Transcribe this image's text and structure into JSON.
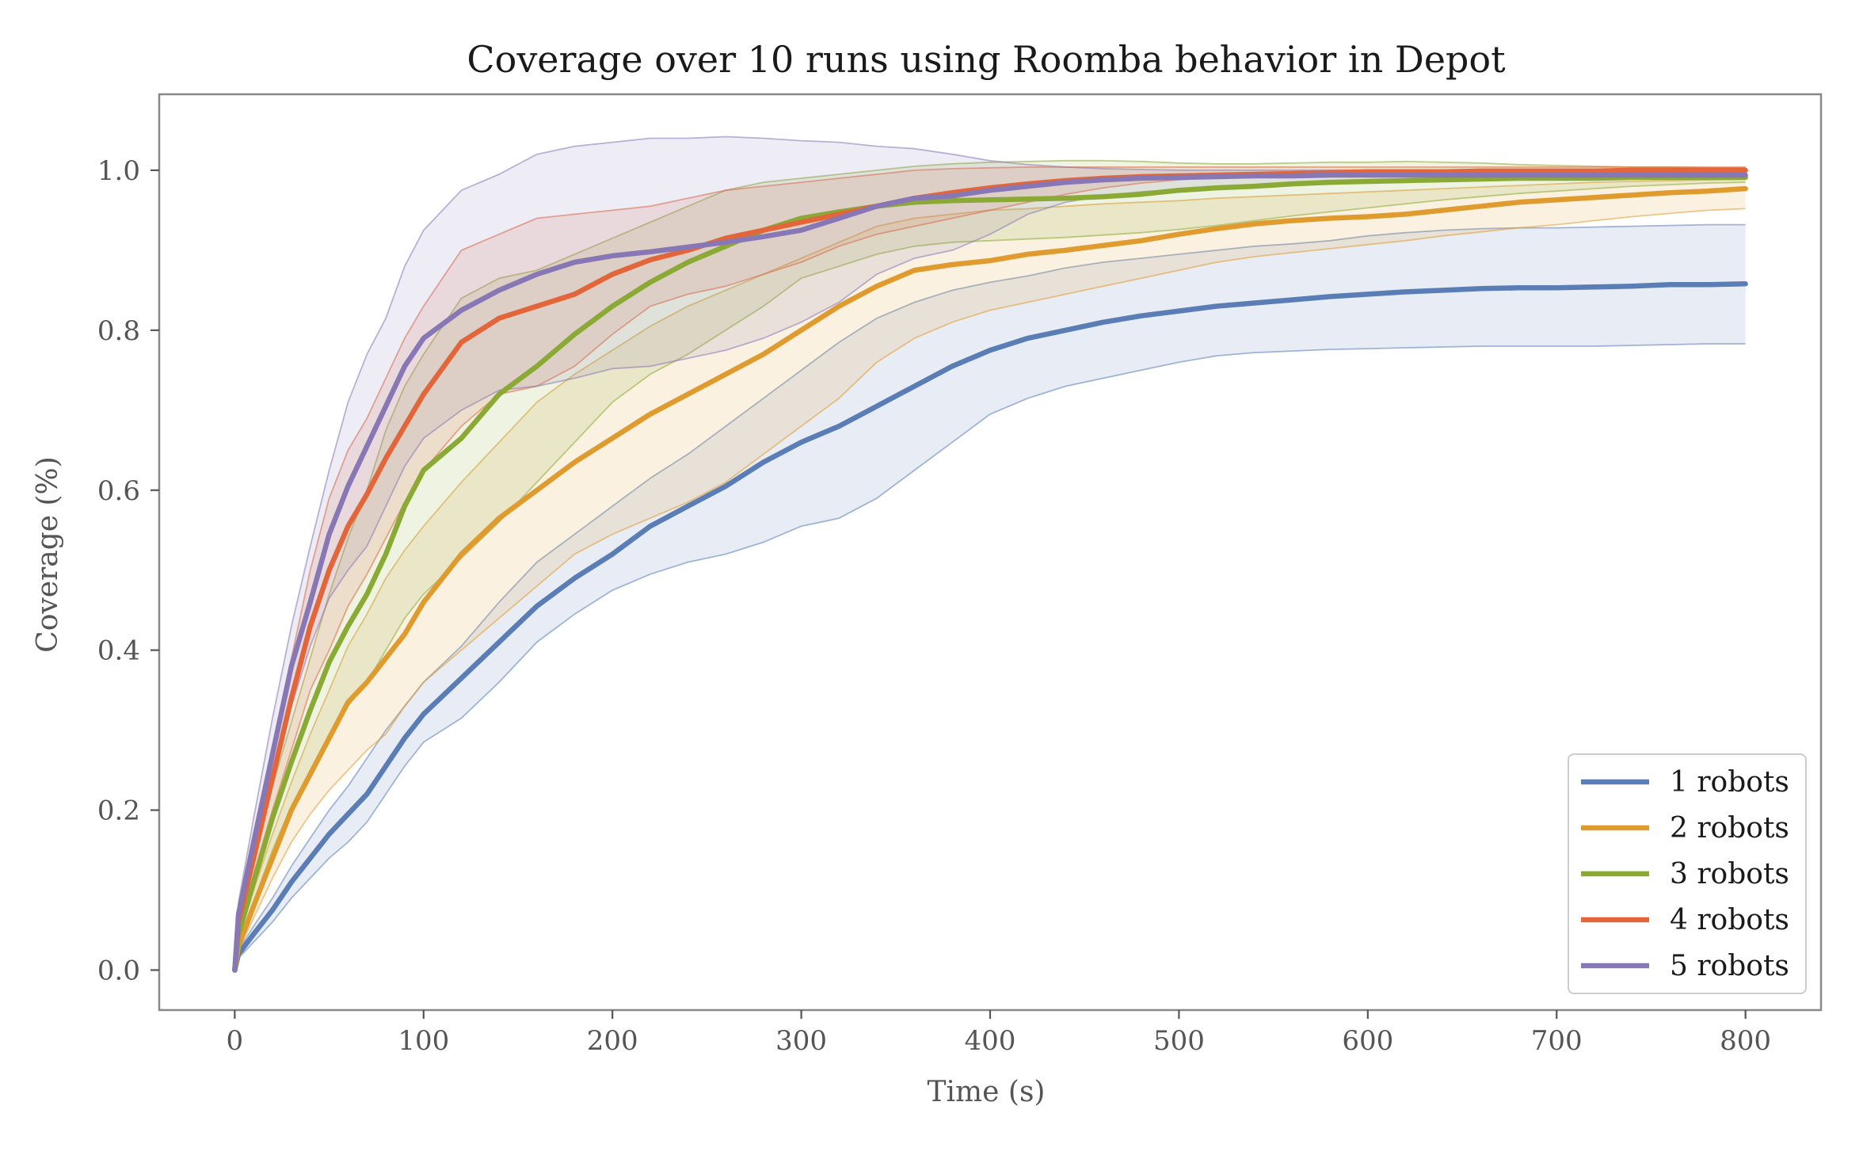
{
  "chart_data": {
    "type": "line",
    "title": "Coverage over 10 runs using Roomba behavior in Depot",
    "xlabel": "Time (s)",
    "ylabel": "Coverage (%)",
    "xlim": [
      -40,
      840
    ],
    "ylim": [
      -0.05,
      1.095
    ],
    "xticks": [
      0,
      100,
      200,
      300,
      400,
      500,
      600,
      700,
      800
    ],
    "xtick_labels": [
      "0",
      "100",
      "200",
      "300",
      "400",
      "500",
      "600",
      "700",
      "800"
    ],
    "yticks": [
      0.0,
      0.2,
      0.4,
      0.6,
      0.8,
      1.0
    ],
    "ytick_labels": [
      "0.0",
      "0.2",
      "0.4",
      "0.6",
      "0.8",
      "1.0"
    ],
    "grid": false,
    "legend_position": "lower-right",
    "x": [
      0,
      2,
      10,
      20,
      30,
      40,
      50,
      60,
      70,
      80,
      90,
      100,
      120,
      140,
      160,
      180,
      200,
      220,
      240,
      260,
      280,
      300,
      320,
      340,
      360,
      380,
      400,
      420,
      440,
      460,
      480,
      500,
      520,
      540,
      560,
      580,
      600,
      620,
      640,
      660,
      680,
      700,
      720,
      740,
      760,
      780,
      800
    ],
    "series": [
      {
        "name": "1 robots",
        "color": "#5a7db5",
        "mean": [
          0.0,
          0.02,
          0.045,
          0.075,
          0.11,
          0.14,
          0.17,
          0.195,
          0.22,
          0.255,
          0.29,
          0.32,
          0.365,
          0.41,
          0.455,
          0.49,
          0.52,
          0.555,
          0.58,
          0.605,
          0.635,
          0.66,
          0.68,
          0.705,
          0.73,
          0.755,
          0.775,
          0.79,
          0.8,
          0.81,
          0.818,
          0.824,
          0.83,
          0.834,
          0.838,
          0.842,
          0.845,
          0.848,
          0.85,
          0.852,
          0.853,
          0.853,
          0.854,
          0.855,
          0.857,
          0.857,
          0.858
        ],
        "lower": [
          0.0,
          0.015,
          0.035,
          0.06,
          0.09,
          0.115,
          0.14,
          0.16,
          0.185,
          0.22,
          0.255,
          0.285,
          0.315,
          0.36,
          0.41,
          0.445,
          0.475,
          0.495,
          0.51,
          0.52,
          0.535,
          0.555,
          0.565,
          0.59,
          0.625,
          0.66,
          0.695,
          0.715,
          0.73,
          0.74,
          0.75,
          0.76,
          0.768,
          0.772,
          0.774,
          0.776,
          0.777,
          0.778,
          0.779,
          0.78,
          0.78,
          0.78,
          0.78,
          0.781,
          0.782,
          0.783,
          0.783
        ],
        "upper": [
          0.0,
          0.025,
          0.055,
          0.09,
          0.13,
          0.165,
          0.2,
          0.23,
          0.265,
          0.3,
          0.33,
          0.36,
          0.405,
          0.46,
          0.51,
          0.545,
          0.58,
          0.615,
          0.645,
          0.68,
          0.715,
          0.75,
          0.785,
          0.815,
          0.835,
          0.85,
          0.86,
          0.868,
          0.878,
          0.885,
          0.89,
          0.895,
          0.9,
          0.905,
          0.908,
          0.912,
          0.918,
          0.922,
          0.925,
          0.927,
          0.928,
          0.928,
          0.929,
          0.93,
          0.931,
          0.932,
          0.932
        ]
      },
      {
        "name": "2 robots",
        "color": "#e09b2e",
        "mean": [
          0.0,
          0.03,
          0.08,
          0.14,
          0.2,
          0.245,
          0.29,
          0.335,
          0.36,
          0.39,
          0.42,
          0.46,
          0.52,
          0.565,
          0.6,
          0.635,
          0.665,
          0.695,
          0.72,
          0.745,
          0.77,
          0.8,
          0.83,
          0.855,
          0.875,
          0.882,
          0.887,
          0.895,
          0.9,
          0.906,
          0.912,
          0.92,
          0.927,
          0.933,
          0.937,
          0.94,
          0.942,
          0.945,
          0.95,
          0.955,
          0.96,
          0.963,
          0.966,
          0.969,
          0.972,
          0.974,
          0.977
        ],
        "lower": [
          0.0,
          0.025,
          0.065,
          0.115,
          0.16,
          0.195,
          0.225,
          0.25,
          0.275,
          0.295,
          0.33,
          0.36,
          0.4,
          0.44,
          0.48,
          0.52,
          0.545,
          0.565,
          0.585,
          0.61,
          0.645,
          0.68,
          0.715,
          0.76,
          0.79,
          0.81,
          0.825,
          0.835,
          0.845,
          0.855,
          0.865,
          0.875,
          0.885,
          0.892,
          0.897,
          0.902,
          0.907,
          0.912,
          0.918,
          0.923,
          0.928,
          0.932,
          0.937,
          0.942,
          0.946,
          0.95,
          0.952
        ],
        "upper": [
          0.0,
          0.04,
          0.1,
          0.17,
          0.235,
          0.295,
          0.35,
          0.405,
          0.445,
          0.49,
          0.525,
          0.555,
          0.61,
          0.66,
          0.71,
          0.745,
          0.775,
          0.805,
          0.83,
          0.85,
          0.87,
          0.89,
          0.91,
          0.93,
          0.94,
          0.945,
          0.95,
          0.952,
          0.955,
          0.958,
          0.96,
          0.962,
          0.965,
          0.967,
          0.969,
          0.971,
          0.973,
          0.975,
          0.977,
          0.979,
          0.981,
          0.983,
          0.985,
          0.986,
          0.987,
          0.988,
          0.989
        ]
      },
      {
        "name": "3 robots",
        "color": "#8aaa35",
        "mean": [
          0.0,
          0.045,
          0.11,
          0.19,
          0.26,
          0.325,
          0.385,
          0.43,
          0.47,
          0.52,
          0.58,
          0.625,
          0.665,
          0.72,
          0.755,
          0.795,
          0.83,
          0.86,
          0.885,
          0.905,
          0.925,
          0.94,
          0.948,
          0.955,
          0.96,
          0.962,
          0.963,
          0.964,
          0.965,
          0.967,
          0.97,
          0.975,
          0.978,
          0.98,
          0.983,
          0.985,
          0.986,
          0.987,
          0.988,
          0.989,
          0.99,
          0.99,
          0.99,
          0.991,
          0.991,
          0.991,
          0.991
        ],
        "lower": [
          0.0,
          0.035,
          0.085,
          0.15,
          0.205,
          0.25,
          0.295,
          0.33,
          0.36,
          0.4,
          0.44,
          0.47,
          0.515,
          0.56,
          0.61,
          0.66,
          0.71,
          0.745,
          0.77,
          0.8,
          0.83,
          0.865,
          0.88,
          0.895,
          0.905,
          0.91,
          0.912,
          0.914,
          0.916,
          0.919,
          0.922,
          0.926,
          0.931,
          0.937,
          0.943,
          0.948,
          0.953,
          0.958,
          0.963,
          0.967,
          0.971,
          0.974,
          0.977,
          0.98,
          0.982,
          0.984,
          0.985
        ],
        "upper": [
          0.0,
          0.055,
          0.135,
          0.23,
          0.31,
          0.39,
          0.47,
          0.54,
          0.6,
          0.675,
          0.73,
          0.77,
          0.84,
          0.865,
          0.875,
          0.895,
          0.915,
          0.935,
          0.955,
          0.975,
          0.985,
          0.99,
          0.995,
          1.0,
          1.005,
          1.008,
          1.01,
          1.011,
          1.012,
          1.012,
          1.011,
          1.009,
          1.008,
          1.008,
          1.009,
          1.01,
          1.01,
          1.011,
          1.01,
          1.009,
          1.007,
          1.006,
          1.005,
          1.004,
          1.004,
          1.003,
          1.003
        ]
      },
      {
        "name": "4 robots",
        "color": "#e2663a",
        "mean": [
          0.0,
          0.06,
          0.14,
          0.24,
          0.34,
          0.43,
          0.5,
          0.555,
          0.595,
          0.64,
          0.68,
          0.72,
          0.785,
          0.815,
          0.83,
          0.845,
          0.87,
          0.888,
          0.9,
          0.915,
          0.925,
          0.935,
          0.945,
          0.955,
          0.965,
          0.972,
          0.978,
          0.983,
          0.987,
          0.99,
          0.992,
          0.993,
          0.994,
          0.995,
          0.996,
          0.997,
          0.998,
          0.998,
          0.998,
          0.999,
          0.999,
          0.999,
          0.999,
          1.0,
          1.0,
          1.0,
          1.0
        ],
        "lower": [
          0.0,
          0.05,
          0.12,
          0.2,
          0.275,
          0.35,
          0.4,
          0.455,
          0.495,
          0.54,
          0.585,
          0.625,
          0.68,
          0.72,
          0.73,
          0.755,
          0.795,
          0.83,
          0.845,
          0.855,
          0.87,
          0.885,
          0.905,
          0.92,
          0.93,
          0.94,
          0.95,
          0.96,
          0.97,
          0.978,
          0.984,
          0.988,
          0.991,
          0.993,
          0.995,
          0.996,
          0.997,
          0.997,
          0.998,
          0.998,
          0.998,
          0.999,
          0.999,
          0.999,
          0.999,
          0.999,
          0.999
        ],
        "upper": [
          0.0,
          0.07,
          0.16,
          0.275,
          0.39,
          0.5,
          0.59,
          0.65,
          0.69,
          0.74,
          0.79,
          0.83,
          0.9,
          0.92,
          0.94,
          0.945,
          0.95,
          0.955,
          0.965,
          0.975,
          0.98,
          0.985,
          0.99,
          0.995,
          1.0,
          1.002,
          1.003,
          1.004,
          1.004,
          1.004,
          1.004,
          1.004,
          1.004,
          1.004,
          1.004,
          1.004,
          1.004,
          1.004,
          1.004,
          1.004,
          1.004,
          1.004,
          1.004,
          1.004,
          1.004,
          1.004,
          1.004
        ]
      },
      {
        "name": "5 robots",
        "color": "#8777b4",
        "mean": [
          0.0,
          0.07,
          0.16,
          0.27,
          0.38,
          0.46,
          0.545,
          0.605,
          0.655,
          0.705,
          0.755,
          0.79,
          0.825,
          0.85,
          0.87,
          0.885,
          0.893,
          0.898,
          0.904,
          0.91,
          0.917,
          0.925,
          0.94,
          0.955,
          0.965,
          0.968,
          0.975,
          0.98,
          0.985,
          0.988,
          0.99,
          0.991,
          0.992,
          0.993,
          0.993,
          0.994,
          0.994,
          0.994,
          0.994,
          0.994,
          0.994,
          0.994,
          0.994,
          0.994,
          0.994,
          0.994,
          0.994
        ],
        "lower": [
          0.0,
          0.06,
          0.14,
          0.24,
          0.33,
          0.405,
          0.465,
          0.5,
          0.53,
          0.58,
          0.63,
          0.665,
          0.7,
          0.725,
          0.73,
          0.74,
          0.752,
          0.755,
          0.765,
          0.775,
          0.79,
          0.81,
          0.835,
          0.87,
          0.89,
          0.9,
          0.92,
          0.945,
          0.96,
          0.968,
          0.973,
          0.976,
          0.979,
          0.981,
          0.983,
          0.985,
          0.986,
          0.987,
          0.988,
          0.989,
          0.99,
          0.99,
          0.99,
          0.99,
          0.99,
          0.99,
          0.99
        ],
        "upper": [
          0.0,
          0.085,
          0.19,
          0.315,
          0.43,
          0.53,
          0.625,
          0.71,
          0.77,
          0.815,
          0.88,
          0.925,
          0.975,
          0.995,
          1.02,
          1.03,
          1.035,
          1.04,
          1.04,
          1.042,
          1.04,
          1.037,
          1.035,
          1.03,
          1.027,
          1.02,
          1.012,
          1.007,
          1.004,
          1.002,
          1.001,
          1.0,
          1.0,
          1.0,
          1.0,
          1.0,
          1.0,
          1.0,
          1.0,
          1.0,
          1.0,
          1.0,
          1.0,
          1.0,
          1.0,
          1.0,
          1.0
        ]
      }
    ]
  }
}
